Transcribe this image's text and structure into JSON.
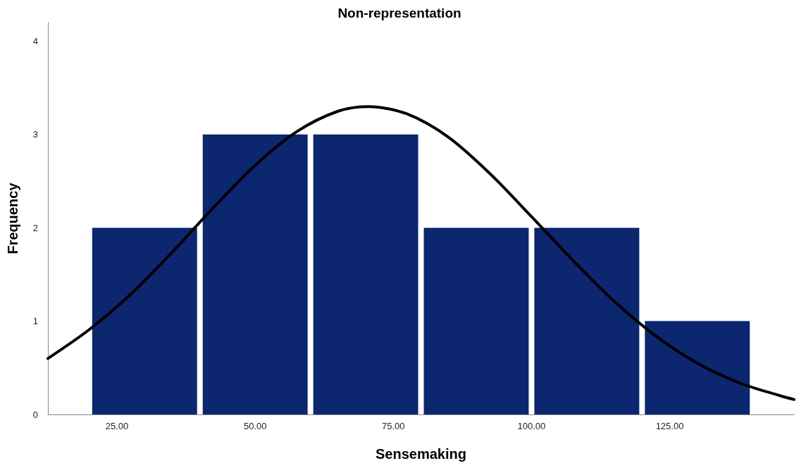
{
  "chart_data": {
    "type": "histogram",
    "title": "Non-representation",
    "xlabel": "Sensemaking",
    "ylabel": "Frequency",
    "xlim": [
      12.5,
      147.5
    ],
    "xticks": [
      {
        "value": 25,
        "label": "25.00"
      },
      {
        "value": 50,
        "label": "50.00"
      },
      {
        "value": 75,
        "label": "75.00"
      },
      {
        "value": 100,
        "label": "100.00"
      },
      {
        "value": 125,
        "label": "125.00"
      }
    ],
    "ylim": [
      0,
      4.2
    ],
    "yticks": [
      0,
      1,
      2,
      3,
      4
    ],
    "grid": false,
    "series": [
      {
        "color": "#0c2670",
        "bins": [
          20,
          40,
          60,
          80,
          100,
          120,
          140
        ],
        "values": [
          2,
          3,
          3,
          2,
          2,
          1
        ]
      },
      {
        "type": "line",
        "color": "#000000",
        "marker": "none",
        "line_style": "solid",
        "x": [
          12.5,
          20,
          27.5,
          35,
          42.5,
          50,
          57.5,
          65,
          70.5,
          77.5,
          85,
          92.5,
          100,
          107.5,
          115,
          122.5,
          130,
          137.5,
          145,
          147.5
        ],
        "values": [
          0.6,
          0.91,
          1.29,
          1.74,
          2.22,
          2.67,
          3.03,
          3.25,
          3.3,
          3.22,
          2.97,
          2.58,
          2.12,
          1.65,
          1.21,
          0.84,
          0.55,
          0.34,
          0.2,
          0.16
        ]
      }
    ]
  }
}
